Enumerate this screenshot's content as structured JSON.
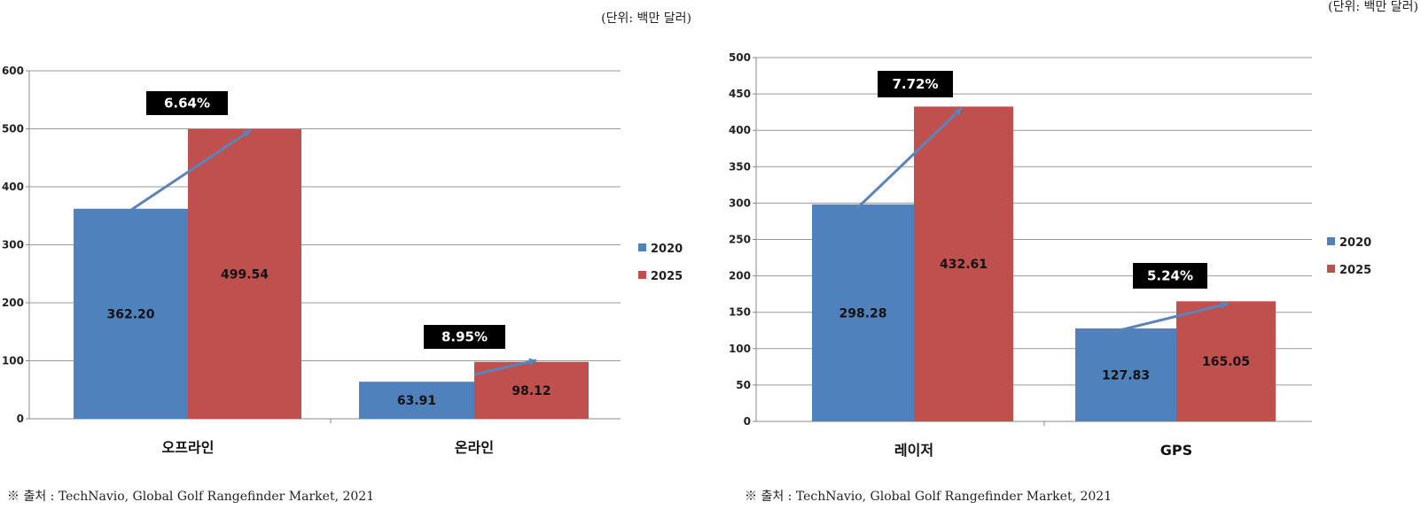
{
  "chart_data": [
    {
      "type": "bar",
      "unit_note": "(단위: 백만 달러)",
      "categories": [
        "오프라인",
        "온라인"
      ],
      "series": [
        {
          "name": "2020",
          "values": [
            362.2,
            63.91
          ]
        },
        {
          "name": "2025",
          "values": [
            499.54,
            98.12
          ]
        }
      ],
      "value_labels": [
        [
          "362.20",
          "63.91"
        ],
        [
          "499.54",
          "98.12"
        ]
      ],
      "growth_labels": [
        "6.64%",
        "8.95%"
      ],
      "ylim": [
        0,
        600
      ],
      "yticks": [
        0,
        100,
        200,
        300,
        400,
        500,
        600
      ],
      "grid": true,
      "legend": "right",
      "source": "※ 출처 : TechNavio, Global Golf Rangefinder Market, 2021"
    },
    {
      "type": "bar",
      "unit_note": "(단위: 백만 달러)",
      "categories": [
        "레이저",
        "GPS"
      ],
      "series": [
        {
          "name": "2020",
          "values": [
            298.28,
            127.83
          ]
        },
        {
          "name": "2025",
          "values": [
            432.61,
            165.05
          ]
        }
      ],
      "value_labels": [
        [
          "298.28",
          "127.83"
        ],
        [
          "432.61",
          "165.05"
        ]
      ],
      "growth_labels": [
        "7.72%",
        "5.24%"
      ],
      "ylim": [
        0,
        500
      ],
      "yticks": [
        0,
        50,
        100,
        150,
        200,
        250,
        300,
        350,
        400,
        450,
        500
      ],
      "grid": true,
      "legend": "right",
      "source": "※ 출처 : TechNavio, Global Golf Rangefinder Market, 2021"
    }
  ],
  "colors": {
    "2020": "#4f81bd",
    "2025": "#c0504d",
    "arrow": "#5b84b8",
    "badge": "#000000"
  }
}
